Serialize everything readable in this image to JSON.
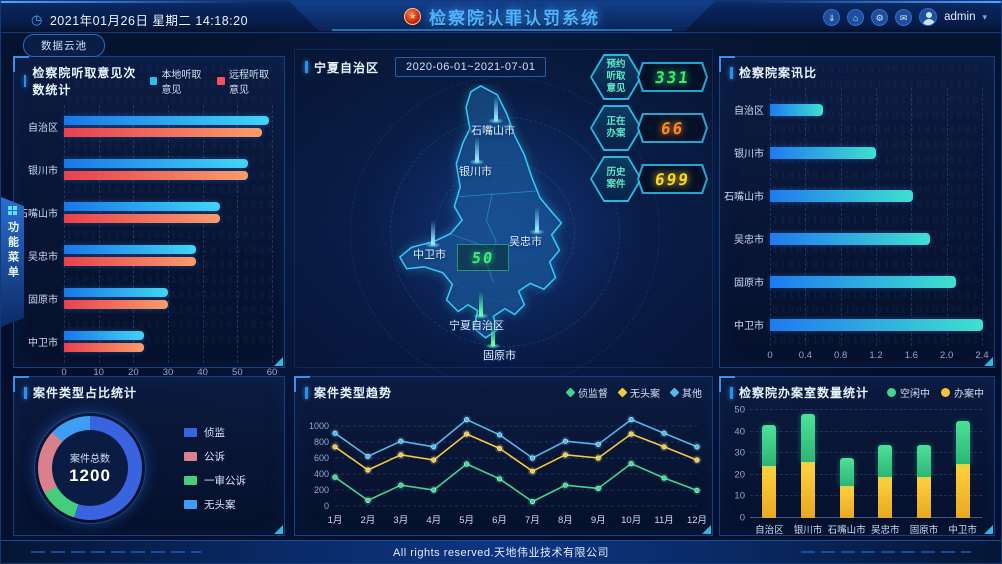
{
  "header": {
    "datetime": "2021年01月26日  星期二  14:18:20",
    "title": "检察院认罪认罚系统",
    "data_cloud_button": "数据云池",
    "user": "admin",
    "icons": [
      "download-icon",
      "home-icon",
      "gear-icon",
      "message-icon"
    ]
  },
  "side_tab": {
    "label": "功能菜单"
  },
  "map": {
    "title": "宁夏自治区",
    "date_range": "2020-06-01~2021-07-01",
    "marker_value": "50",
    "cities": [
      {
        "name": "石嘴山市"
      },
      {
        "name": "银川市"
      },
      {
        "name": "吴忠市"
      },
      {
        "name": "中卫市"
      },
      {
        "name": "宁夏自治区"
      },
      {
        "name": "固原市"
      }
    ]
  },
  "stats": [
    {
      "label": "预约听取意见",
      "value": "331",
      "color": "#37f06e"
    },
    {
      "label": "正在办案",
      "value": "66",
      "color": "#ff8a1e"
    },
    {
      "label": "历史案件",
      "value": "699",
      "color": "#ffd71e"
    }
  ],
  "footer": {
    "text": "All rights reserved.天地伟业技术有限公司"
  },
  "decor": {
    "binary": "010100101101010010110101001011010100101101010010110101001011010100101101010010110101001011"
  },
  "chart_data": [
    {
      "id": "listen",
      "type": "bar",
      "orientation": "horizontal",
      "title": "检察院听取意见次数统计",
      "categories": [
        "自治区",
        "银川市",
        "石嘴山市",
        "吴忠市",
        "固原市",
        "中卫市"
      ],
      "series": [
        {
          "name": "本地听取意见",
          "color": "#29c0f0",
          "color_from": "#1a78e8",
          "color_to": "#40d6f5",
          "values": [
            59,
            53,
            45,
            38,
            30,
            23
          ]
        },
        {
          "name": "远程听取意见",
          "color": "#f4515c",
          "color_from": "#e8414e",
          "color_to": "#fa9c6a",
          "values": [
            57,
            53,
            45,
            38,
            30,
            23
          ]
        }
      ],
      "xlim": [
        0,
        60
      ],
      "xticks": [
        "0",
        "10",
        "20",
        "30",
        "40",
        "50",
        "60"
      ],
      "grid": "dashed-vertical"
    },
    {
      "id": "ratio",
      "type": "bar",
      "orientation": "horizontal",
      "title": "检察院案讯比",
      "categories": [
        "自治区",
        "银川市",
        "石嘴山市",
        "吴忠市",
        "固原市",
        "中卫市"
      ],
      "series": [
        {
          "name": "案讯比",
          "color": "#2fb8e8",
          "color_from": "#1f7af0",
          "color_to": "#3fe0cf",
          "values": [
            0.6,
            1.2,
            1.62,
            1.81,
            2.11,
            2.41
          ]
        }
      ],
      "xlim": [
        0,
        2.4
      ],
      "xticks": [
        "0",
        "0.4",
        "0.8",
        "1.2",
        "1.6",
        "2.0",
        "2.4"
      ],
      "grid": "dashed-vertical"
    },
    {
      "id": "case_share",
      "type": "pie",
      "title": "案件类型占比统计",
      "center_label": "案件总数",
      "total": "1200",
      "slices": [
        {
          "label": "侦监",
          "value": 55,
          "color": "#3a63e0"
        },
        {
          "label": "一审公诉",
          "value": 12,
          "color": "#45cc7d"
        },
        {
          "label": "公诉",
          "value": 20,
          "color": "#d9808e"
        },
        {
          "label": "无头案",
          "value": 13,
          "color": "#3f9ef2"
        }
      ],
      "legend": [
        {
          "label": "侦监",
          "color": "#3a63e0"
        },
        {
          "label": "公诉",
          "color": "#d9808e"
        },
        {
          "label": "一审公诉",
          "color": "#45cc7d"
        },
        {
          "label": "无头案",
          "color": "#3f9ef2"
        }
      ]
    },
    {
      "id": "trend",
      "type": "line",
      "title": "案件类型趋势",
      "x": [
        "1月",
        "2月",
        "3月",
        "4月",
        "5月",
        "6月",
        "7月",
        "8月",
        "9月",
        "10月",
        "11月",
        "12月"
      ],
      "series": [
        {
          "name": "侦监督",
          "color": "#3fd68f",
          "values": [
            360,
            70,
            260,
            200,
            525,
            340,
            55,
            260,
            220,
            530,
            350,
            195
          ]
        },
        {
          "name": "无头案",
          "color": "#f5c93d",
          "values": [
            740,
            450,
            640,
            575,
            900,
            720,
            435,
            640,
            600,
            900,
            740,
            575
          ]
        },
        {
          "name": "其他",
          "color": "#52b8e8",
          "values": [
            910,
            620,
            810,
            740,
            1080,
            890,
            600,
            810,
            770,
            1080,
            910,
            740
          ]
        }
      ],
      "yticks": [
        0,
        200,
        400,
        600,
        800,
        1000
      ],
      "ylim": [
        0,
        1150
      ],
      "grid": "dashed-horizontal",
      "legend_position": "top-right"
    },
    {
      "id": "offices",
      "type": "stacked_bar",
      "title": "检察院办案室数量统计",
      "categories": [
        "自治区",
        "银川市",
        "石嘴山市",
        "吴忠市",
        "固原市",
        "中卫市"
      ],
      "series": [
        {
          "name": "空闲中",
          "color": "#3ed68f",
          "color_from": "#4ee09a",
          "color_to": "#2bb673",
          "values": [
            19,
            22,
            13,
            15,
            15,
            20
          ]
        },
        {
          "name": "办案中",
          "color": "#f5c23d",
          "color_from": "#ffd23f",
          "color_to": "#e8a820",
          "values": [
            24,
            26,
            15,
            19,
            19,
            25
          ]
        }
      ],
      "yticks": [
        0,
        10,
        20,
        30,
        40,
        50
      ],
      "ylim": [
        0,
        50
      ],
      "grid": "dashed-horizontal"
    }
  ]
}
